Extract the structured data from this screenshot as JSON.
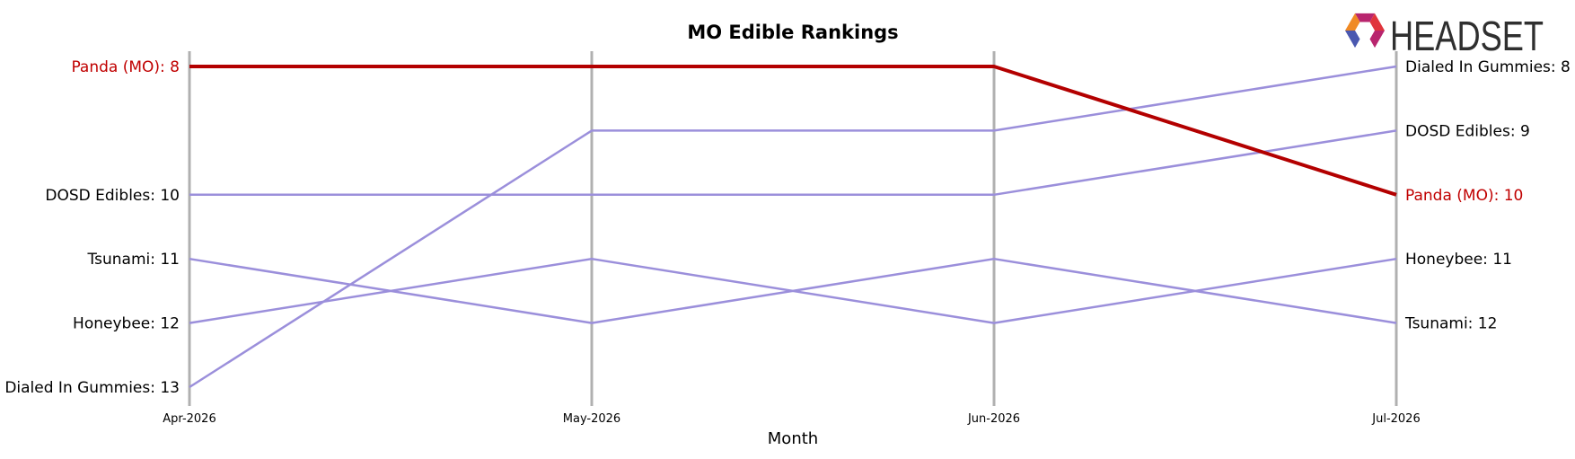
{
  "logo": {
    "text": "HEADSET",
    "colors": [
      "#e0353c",
      "#b8256e",
      "#7a2a8a",
      "#f08a25",
      "#2b3b8f",
      "#4a58b0"
    ],
    "text_color": "#2f2f2f"
  },
  "colors": {
    "highlight": "#c00000",
    "highlight_line": "#b30000",
    "others": "#9b8fdb",
    "axis_line": "#b0b0b0",
    "label": "#000000"
  },
  "chart_data": {
    "type": "line",
    "title": "MO Edible Rankings",
    "xlabel": "Month",
    "ylabel": "",
    "categories": [
      "Apr-2026",
      "May-2026",
      "Jun-2026",
      "Jul-2026"
    ],
    "y_inverted": true,
    "ylim": [
      8,
      13
    ],
    "grid": false,
    "series": [
      {
        "name": "Panda (MO)",
        "values": [
          8,
          8,
          8,
          10
        ],
        "highlight": true
      },
      {
        "name": "DOSD Edibles",
        "values": [
          10,
          10,
          10,
          9
        ],
        "highlight": false
      },
      {
        "name": "Tsunami",
        "values": [
          11,
          12,
          11,
          12
        ],
        "highlight": false
      },
      {
        "name": "Honeybee",
        "values": [
          12,
          11,
          12,
          11
        ],
        "highlight": false
      },
      {
        "name": "Dialed In Gummies",
        "values": [
          13,
          9,
          9,
          8
        ],
        "highlight": false
      }
    ]
  }
}
